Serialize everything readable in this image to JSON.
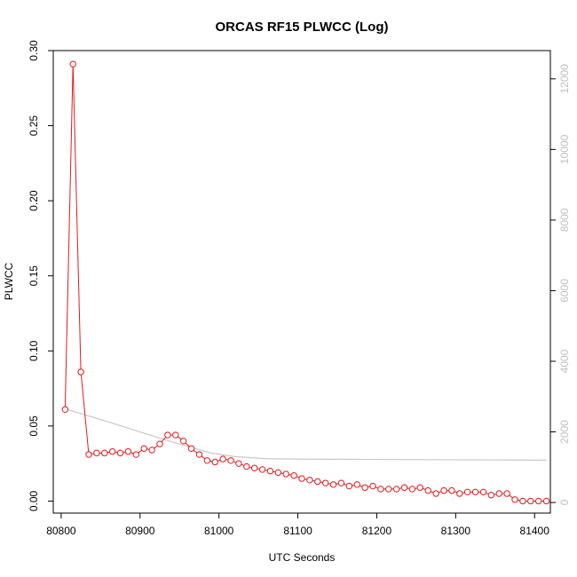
{
  "chart_data": {
    "type": "line",
    "title": "ORCAS RF15 PLWCC (Log)",
    "xlabel": "UTC Seconds",
    "ylabel": "PLWCC",
    "xlim": [
      80790,
      81420
    ],
    "ylim": [
      -0.008,
      0.3
    ],
    "y2lim": [
      -300,
      12800
    ],
    "x_ticks": [
      80800,
      80900,
      81000,
      81100,
      81200,
      81300,
      81400
    ],
    "y_ticks": [
      0.0,
      0.05,
      0.1,
      0.15,
      0.2,
      0.25,
      0.3
    ],
    "y_tick_labels": [
      "0.00",
      "0.05",
      "0.10",
      "0.15",
      "0.20",
      "0.25",
      "0.30"
    ],
    "y2_ticks": [
      0,
      2000,
      4000,
      6000,
      8000,
      10000,
      12000
    ],
    "grid": false,
    "legend": "none",
    "colors": {
      "primary": "#e31a1c",
      "secondary": "#c8c8c8",
      "axis": "#000000",
      "secondary_axis": "#bfbfbf"
    },
    "series": [
      {
        "axis": "left",
        "style": "line+points",
        "x": [
          80805,
          80815,
          80825,
          80835,
          80845,
          80855,
          80865,
          80875,
          80885,
          80895,
          80905,
          80915,
          80925,
          80935,
          80945,
          80955,
          80965,
          80975,
          80985,
          80995,
          81005,
          81015,
          81025,
          81035,
          81045,
          81055,
          81065,
          81075,
          81085,
          81095,
          81105,
          81115,
          81125,
          81135,
          81145,
          81155,
          81165,
          81175,
          81185,
          81195,
          81205,
          81215,
          81225,
          81235,
          81245,
          81255,
          81265,
          81275,
          81285,
          81295,
          81305,
          81315,
          81325,
          81335,
          81345,
          81355,
          81365,
          81375,
          81385,
          81395,
          81405,
          81415
        ],
        "y": [
          0.061,
          0.291,
          0.086,
          0.031,
          0.032,
          0.032,
          0.033,
          0.032,
          0.033,
          0.031,
          0.035,
          0.034,
          0.038,
          0.044,
          0.044,
          0.04,
          0.035,
          0.031,
          0.027,
          0.026,
          0.028,
          0.027,
          0.025,
          0.023,
          0.022,
          0.021,
          0.02,
          0.019,
          0.018,
          0.017,
          0.015,
          0.014,
          0.013,
          0.012,
          0.011,
          0.012,
          0.01,
          0.011,
          0.009,
          0.01,
          0.008,
          0.008,
          0.008,
          0.009,
          0.008,
          0.009,
          0.007,
          0.005,
          0.007,
          0.007,
          0.005,
          0.006,
          0.006,
          0.006,
          0.004,
          0.005,
          0.005,
          0.001,
          0.0,
          0.0,
          0.0,
          0.0
        ]
      },
      {
        "axis": "right",
        "style": "line",
        "x": [
          80805,
          80850,
          80900,
          80950,
          80990,
          81020,
          81060,
          81100,
          81200,
          81300,
          81415
        ],
        "y": [
          2650,
          2350,
          2000,
          1650,
          1400,
          1300,
          1240,
          1230,
          1220,
          1210,
          1200
        ]
      }
    ]
  }
}
